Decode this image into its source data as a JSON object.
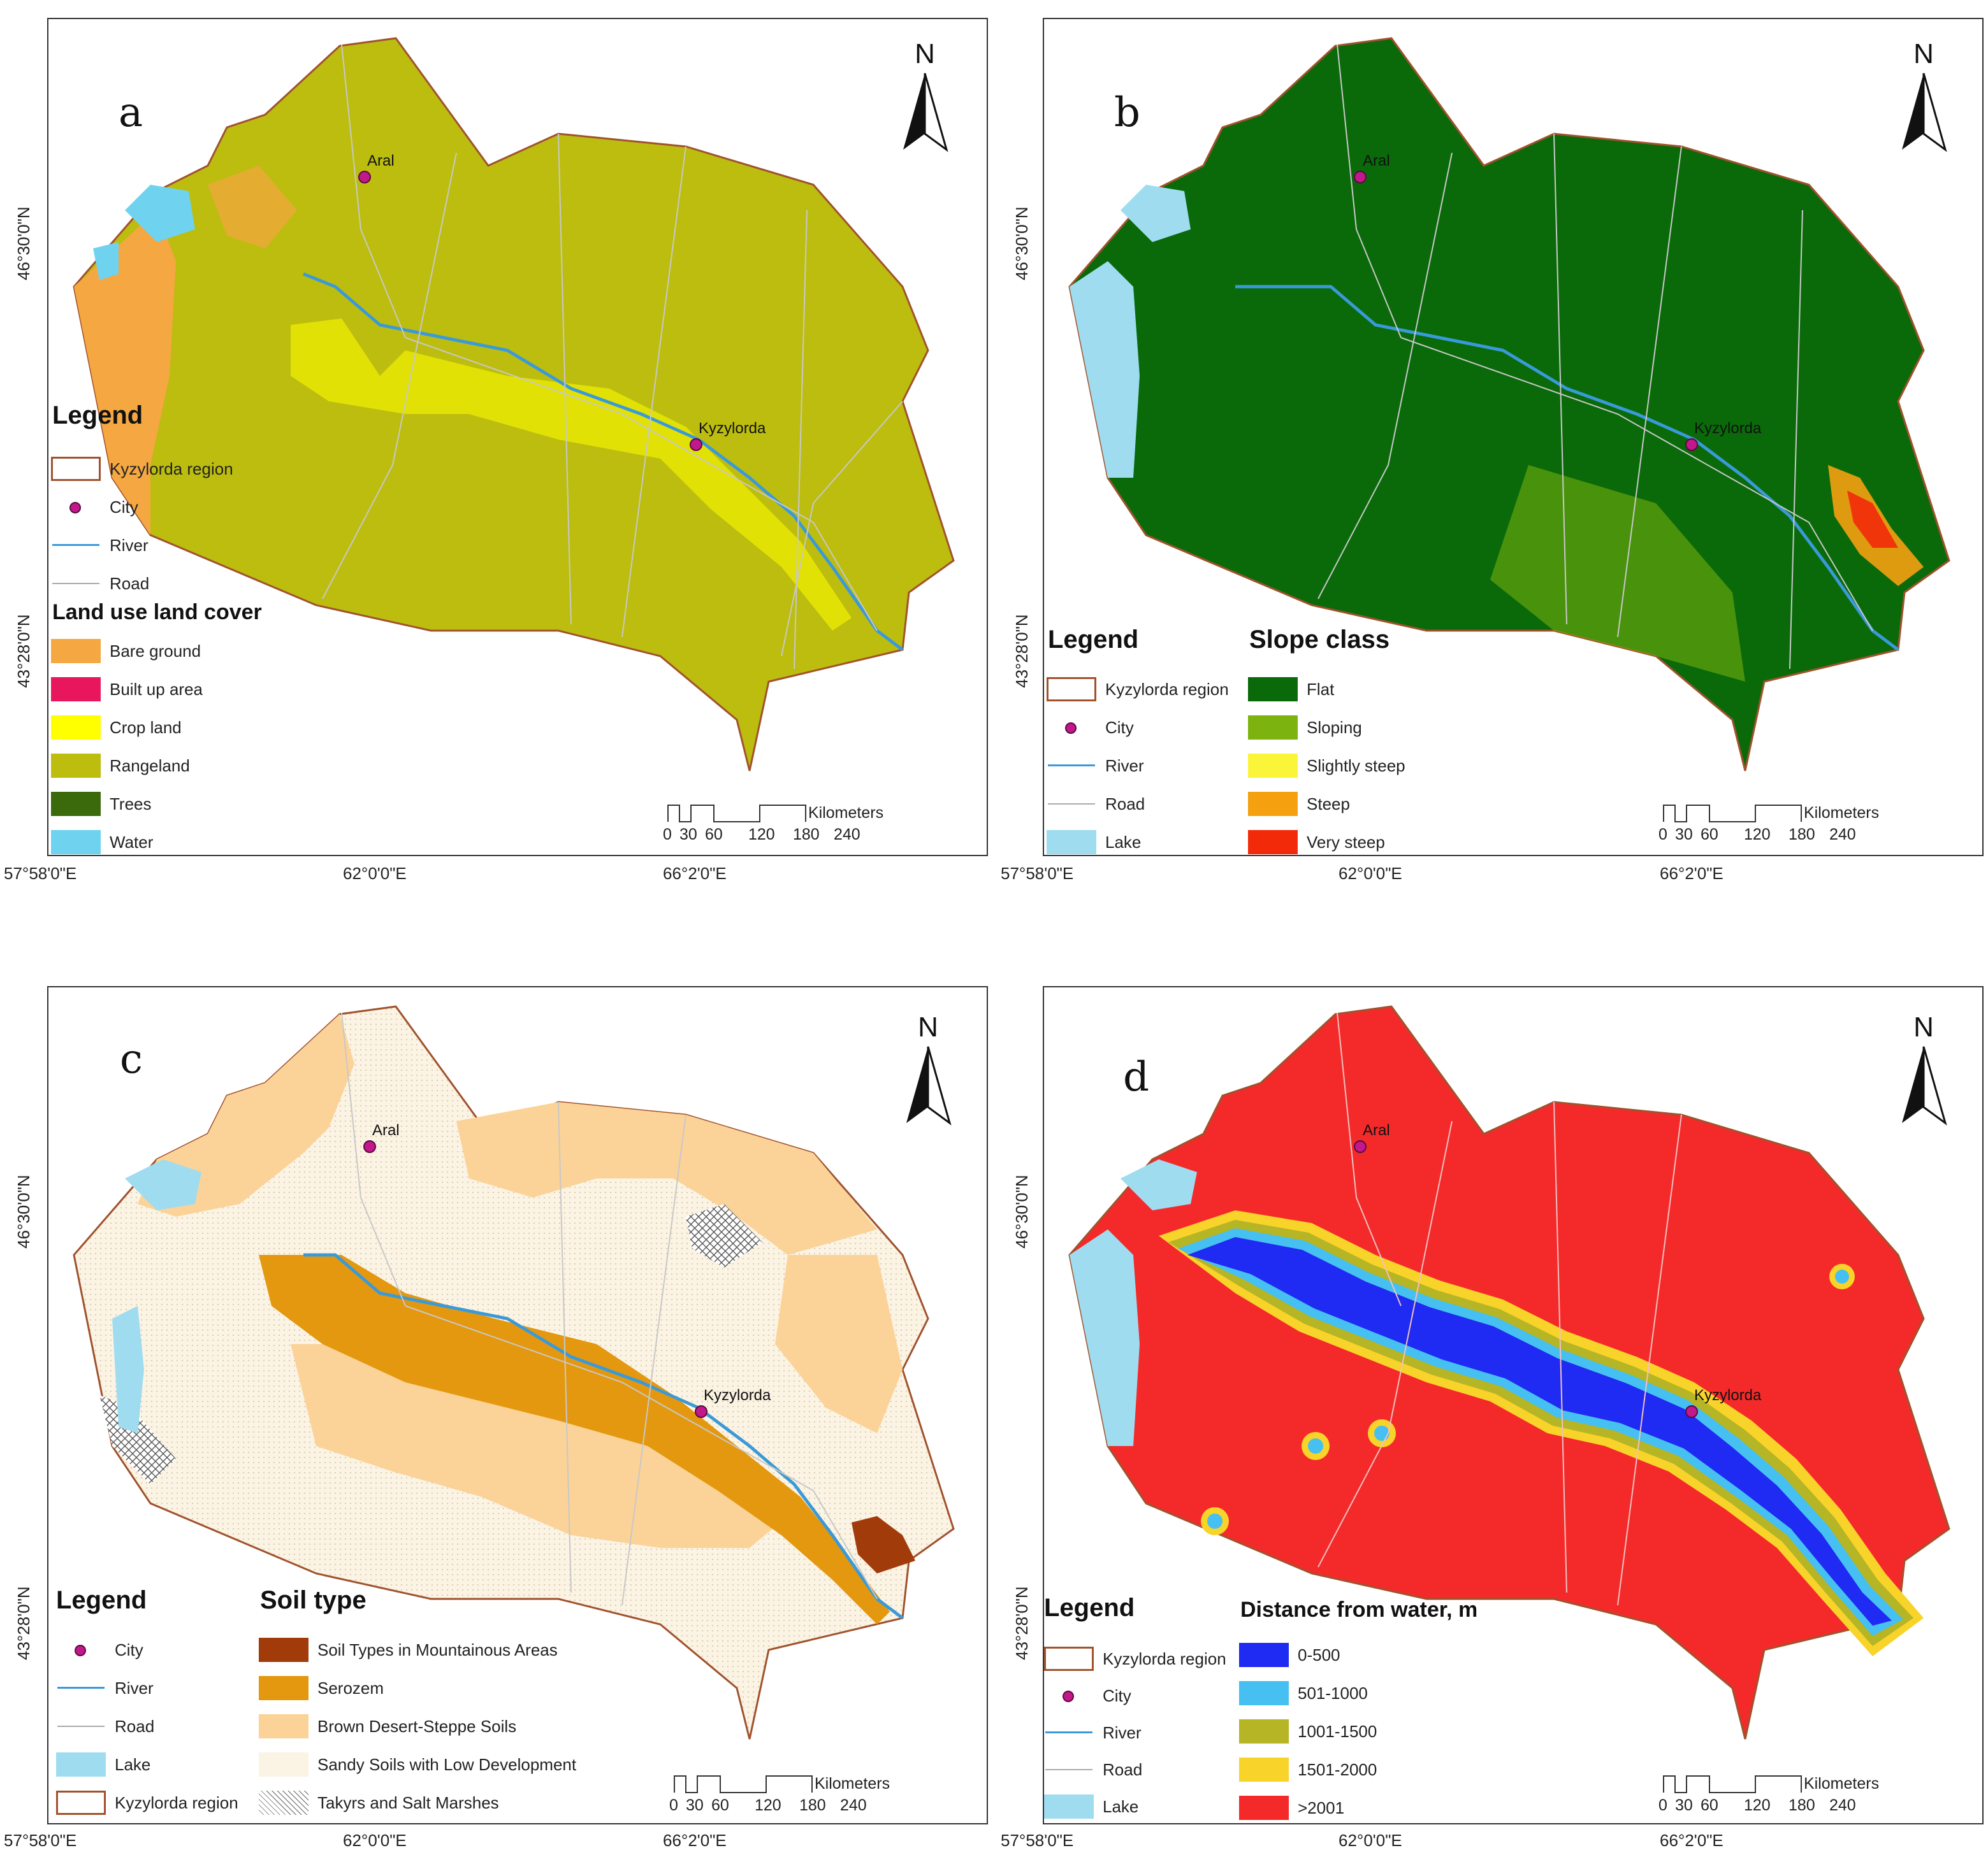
{
  "coords": {
    "lat_top": "46°30'0\"N",
    "lat_bottom": "43°28'0\"N",
    "lon_left": "57°58'0\"E",
    "lon_mid": "62°0'0\"E",
    "lon_right": "66°2'0\"E"
  },
  "north_label": "N",
  "scale": {
    "ticks": [
      "0",
      "30",
      "60",
      "120",
      "180",
      "240"
    ],
    "unit": "Kilometers"
  },
  "cities": {
    "aral": "Aral",
    "kyzylorda": "Kyzylorda"
  },
  "colors": {
    "boundary": "#a0522d",
    "river": "#3a9ad9",
    "road": "#c8c8c8",
    "city": "#c2188b"
  },
  "panels": {
    "a": {
      "letter": "a",
      "legend_title": "Legend",
      "base_items": [
        "Kyzylorda region",
        "City",
        "River",
        "Road"
      ],
      "class_title": "Land use land cover",
      "classes": [
        {
          "label": "Bare ground",
          "color": "#f5a742"
        },
        {
          "label": "Built up area",
          "color": "#e8175d"
        },
        {
          "label": "Crop land",
          "color": "#ffff00"
        },
        {
          "label": "Rangeland",
          "color": "#bcbd0f"
        },
        {
          "label": "Trees",
          "color": "#3a6a0c"
        },
        {
          "label": "Water",
          "color": "#6fd3ef"
        }
      ]
    },
    "b": {
      "letter": "b",
      "legend_title": "Legend",
      "base_items": [
        "Kyzylorda region",
        "City",
        "River",
        "Road",
        "Lake"
      ],
      "class_title": "Slope class",
      "classes": [
        {
          "label": "Flat",
          "color": "#0a6a0a"
        },
        {
          "label": "Sloping",
          "color": "#7db30f"
        },
        {
          "label": "Slightly steep",
          "color": "#fbf53a"
        },
        {
          "label": "Steep",
          "color": "#f5a10f"
        },
        {
          "label": "Very steep",
          "color": "#f22a0a"
        }
      ]
    },
    "c": {
      "letter": "c",
      "legend_title": "Legend",
      "base_items": [
        "City",
        "River",
        "Road",
        "Lake",
        "Kyzylorda region"
      ],
      "class_title": "Soil type",
      "classes": [
        {
          "label": "Soil Types in Mountainous Areas",
          "color": "#a23b0a"
        },
        {
          "label": "Serozem",
          "color": "#e3980f"
        },
        {
          "label": "Brown Desert-Steppe Soils",
          "color": "#fbd398"
        },
        {
          "label": "Sandy Soils with Low Development",
          "color": "#fbf3e3"
        },
        {
          "label": "Takyrs and Salt Marshes",
          "color": "#ffffff"
        }
      ]
    },
    "d": {
      "letter": "d",
      "legend_title": "Legend",
      "base_items": [
        "Kyzylorda region",
        "City",
        "River",
        "Road",
        "Lake"
      ],
      "class_title": "Distance from water, m",
      "classes": [
        {
          "label": "0-500",
          "color": "#1f2af2"
        },
        {
          "label": "501-1000",
          "color": "#45c0f0"
        },
        {
          "label": "1001-1500",
          "color": "#b5b525"
        },
        {
          "label": "1501-2000",
          "color": "#f8d32a"
        },
        {
          "label": ">2001",
          "color": "#f42a2a"
        }
      ]
    }
  }
}
